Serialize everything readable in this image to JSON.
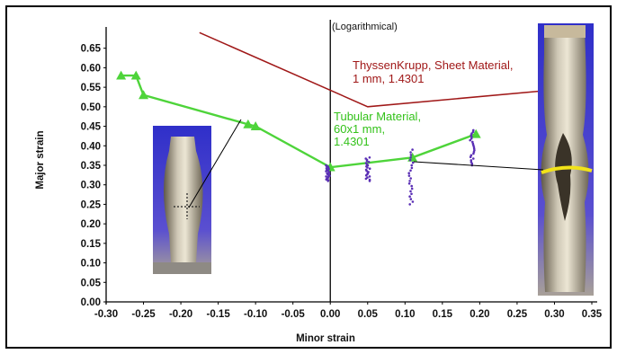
{
  "chart_data": {
    "type": "line",
    "xlabel": "Minor strain",
    "ylabel": "Major strain",
    "annotation": "(Logarithmical)",
    "xlim": [
      -0.3,
      0.35
    ],
    "ylim": [
      0.0,
      0.67
    ],
    "x_ticks": [
      "-0.30",
      "-0.25",
      "-0.20",
      "-0.15",
      "-0.10",
      "-0.05",
      "0.00",
      "0.05",
      "0.10",
      "0.15",
      "0.20",
      "0.25",
      "0.30",
      "0.35"
    ],
    "y_ticks": [
      "0.00",
      "0.05",
      "0.10",
      "0.15",
      "0.20",
      "0.25",
      "0.30",
      "0.35",
      "0.40",
      "0.45",
      "0.50",
      "0.55",
      "0.60",
      "0.65"
    ],
    "series": [
      {
        "name": "ThyssenKrupp, Sheet Material, 1 mm, 1.4301",
        "label_lines": [
          "ThyssenKrupp, Sheet Material,",
          "1 mm, 1.4301"
        ],
        "color": "#a01818",
        "marker": "none",
        "x": [
          -0.175,
          0.05,
          0.28
        ],
        "y": [
          0.69,
          0.5,
          0.54
        ]
      },
      {
        "name": "Tubular Material, 60x1 mm, 1.4301",
        "label_lines": [
          "Tubular Material,",
          "60x1 mm,",
          "1.4301"
        ],
        "color": "#4ed43a",
        "marker": "triangle",
        "x": [
          -0.28,
          -0.26,
          -0.25,
          -0.11,
          -0.1,
          0.0,
          0.11,
          0.195
        ],
        "y": [
          0.58,
          0.58,
          0.53,
          0.455,
          0.45,
          0.345,
          0.37,
          0.43
        ]
      }
    ],
    "scatter_groups": [
      {
        "color": "#5a2fb5",
        "x": -0.003,
        "y_range": [
          0.31,
          0.35
        ]
      },
      {
        "color": "#5a2fb5",
        "x": 0.05,
        "y_range": [
          0.31,
          0.37
        ]
      },
      {
        "color": "#5a2fb5",
        "x": 0.108,
        "y_range": [
          0.25,
          0.39
        ]
      },
      {
        "color": "#5a2fb5",
        "x": 0.19,
        "y_range": [
          0.35,
          0.44
        ]
      }
    ]
  },
  "colors": {
    "axis": "#000000",
    "leader_line": "#000000"
  }
}
